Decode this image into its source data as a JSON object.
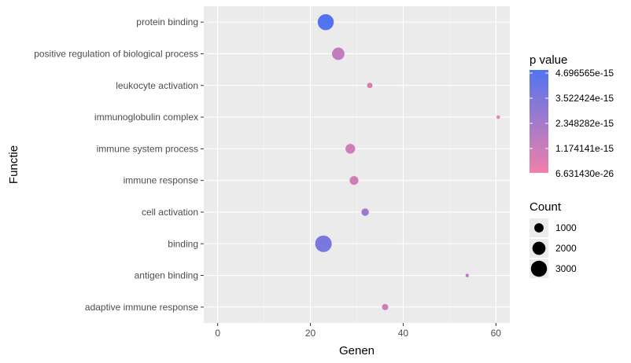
{
  "chart_data": {
    "type": "scatter",
    "xlabel": "Genen",
    "ylabel": "Functie",
    "xlim": [
      -3,
      63
    ],
    "x_ticks": [
      0,
      20,
      40,
      60
    ],
    "grid": true,
    "legend_position": "right",
    "categories": [
      "protein binding",
      "positive regulation of biological process",
      "leukocyte activation",
      "immunoglobulin complex",
      "immune system process",
      "immune response",
      "cell activation",
      "binding",
      "antigen binding",
      "adaptive immune response"
    ],
    "points": [
      {
        "category": "protein binding",
        "x": 23.3,
        "count": 3000,
        "p_value": 4.7e-15
      },
      {
        "category": "positive regulation of biological process",
        "x": 26.0,
        "count": 1800,
        "p_value": 1.4e-15
      },
      {
        "category": "leukocyte activation",
        "x": 32.8,
        "count": 350,
        "p_value": 7e-16
      },
      {
        "category": "immunoglobulin complex",
        "x": 60.5,
        "count": 150,
        "p_value": 6.6e-26
      },
      {
        "category": "immune system process",
        "x": 28.6,
        "count": 1100,
        "p_value": 1e-15
      },
      {
        "category": "immune response",
        "x": 29.4,
        "count": 900,
        "p_value": 1e-15
      },
      {
        "category": "cell activation",
        "x": 31.8,
        "count": 650,
        "p_value": 2.6e-15
      },
      {
        "category": "binding",
        "x": 22.8,
        "count": 3200,
        "p_value": 3.5e-15
      },
      {
        "category": "antigen binding",
        "x": 53.8,
        "count": 90,
        "p_value": 1.6e-15
      },
      {
        "category": "adaptive immune response",
        "x": 36.1,
        "count": 450,
        "p_value": 1e-15
      }
    ],
    "color_legend": {
      "title": "p value",
      "labels": [
        "4.696565e-15",
        "3.522424e-15",
        "2.348282e-15",
        "1.174141e-15",
        "6.631430e-26"
      ],
      "min": 6.63143e-26,
      "max": 4.696565e-15,
      "color_low": "#F080A8",
      "color_high": "#5274F0"
    },
    "size_legend": {
      "title": "Count",
      "entries": [
        {
          "label": "1000",
          "count": 1000
        },
        {
          "label": "2000",
          "count": 2000
        },
        {
          "label": "3000",
          "count": 3000
        }
      ]
    },
    "colors": {
      "panel_background": "#EBEBEB",
      "grid_major": "#FFFFFF",
      "grid_minor": "#F5F5F5"
    }
  }
}
